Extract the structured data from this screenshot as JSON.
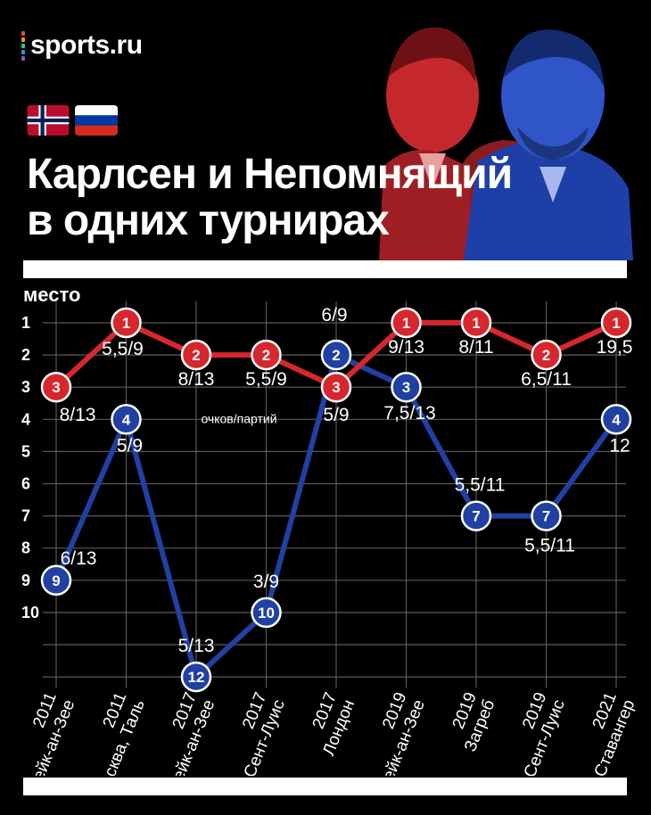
{
  "brand": {
    "name": "sports.ru",
    "dot_colors": [
      "#e74c3c",
      "#f39c12",
      "#2ecc71",
      "#3498db",
      "#9b59b6"
    ]
  },
  "flags": [
    "norway-flag",
    "russia-flag"
  ],
  "title": {
    "line1": "Карлсен и Непомнящий",
    "line2": "в одних турнирах"
  },
  "colors": {
    "carlsen": "#d7262c",
    "nepo": "#2140a3",
    "background": "#000000",
    "grid": "#5a5a5a"
  },
  "chart_data": {
    "type": "line",
    "ylabel": "место",
    "y_ticks": [
      1,
      2,
      3,
      4,
      5,
      6,
      7,
      8,
      9,
      10
    ],
    "y_inverted": true,
    "ylim": [
      1,
      12
    ],
    "grid": true,
    "categories": [
      [
        "2011",
        "Вейк-ан-Зее"
      ],
      [
        "2011",
        "Москва, Таль"
      ],
      [
        "2017",
        "Вейк-ан-Зее"
      ],
      [
        "2017",
        "Сент-Луис"
      ],
      [
        "2017",
        "Лондон"
      ],
      [
        "2019",
        "Вейк-ан-Зее"
      ],
      [
        "2019",
        "Загреб"
      ],
      [
        "2019",
        "Сент-Луис"
      ],
      [
        "2021",
        "Ставангер"
      ]
    ],
    "series": [
      {
        "key": "carlsen",
        "values": [
          3,
          1,
          2,
          2,
          3,
          1,
          1,
          2,
          1
        ],
        "scores": [
          "8/13",
          "5,5/9",
          "8/13",
          "5,5/9",
          "5/9",
          "9/13",
          "8/11",
          "6,5/11",
          "19,5"
        ]
      },
      {
        "key": "nepo",
        "values": [
          9,
          4,
          12,
          10,
          2,
          3,
          7,
          7,
          4
        ],
        "scores": [
          "6/13",
          "5/9",
          "5/13",
          "3/9",
          "6/9",
          "7,5/13",
          "5,5/11",
          "5,5/11",
          "12"
        ]
      }
    ],
    "annotation": "очков/партий"
  }
}
